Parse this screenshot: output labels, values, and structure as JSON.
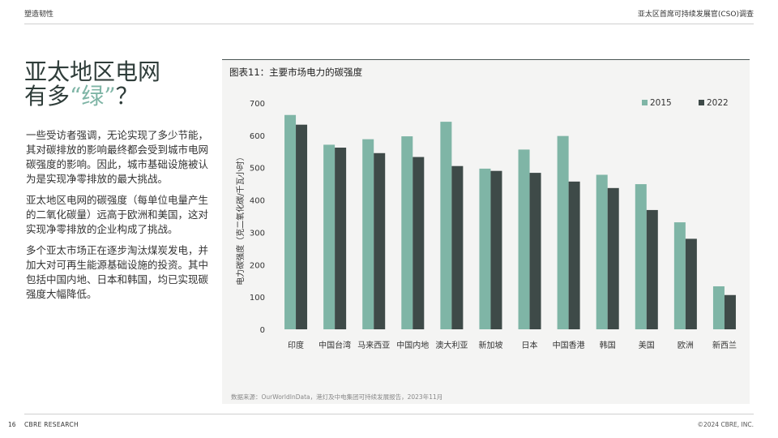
{
  "header": {
    "left": "塑造韧性",
    "right": "亚太区首席可持续发展官(CSO)调查"
  },
  "headline": {
    "line1": "亚太地区电网",
    "line2_prefix": "有多",
    "line2_accent": "“绿”",
    "line2_suffix": "？"
  },
  "body": {
    "p1": "一些受访者强调，无论实现了多少节能，其对碳排放的影响最终都会受到城市电网碳强度的影响。因此，城市基础设施被认为是实现净零排放的最大挑战。",
    "p2": "亚太地区电网的碳强度（每单位电量产生的二氧化碳量）远高于欧洲和美国，这对实现净零排放的企业构成了挑战。",
    "p3": "多个亚太市场正在逐步淘汰煤炭发电，并加大对可再生能源基础设施的投资。其中包括中国内地、日本和韩国，均已实现碳强度大幅降低。"
  },
  "chart_data": {
    "type": "bar",
    "title": "图表11：主要市场电力的碳强度",
    "ylabel": "电力碳强度（克二氧化碳/千瓦小时）",
    "xlabel": "",
    "ylim": [
      0,
      700
    ],
    "yticks": [
      0,
      100,
      200,
      300,
      400,
      500,
      600,
      700
    ],
    "grid": false,
    "legend_position": "top-right",
    "categories": [
      "印度",
      "中国台湾",
      "马来西亚",
      "中国内地",
      "澳大利亚",
      "新加坡",
      "日本",
      "中国香港",
      "韩国",
      "美国",
      "欧洲",
      "新西兰"
    ],
    "series": [
      {
        "name": "2015",
        "color": "#7fb5a6",
        "values": [
          663,
          571,
          588,
          597,
          642,
          497,
          556,
          598,
          478,
          449,
          331,
          133
        ]
      },
      {
        "name": "2022",
        "color": "#3e4a48",
        "values": [
          633,
          562,
          545,
          533,
          505,
          490,
          484,
          457,
          437,
          369,
          280,
          106
        ]
      }
    ],
    "source": "数据来源：OurWorldInData，港灯及中电集团可持续发展报告，2023年11月"
  },
  "footer": {
    "page": "16",
    "brand": "CBRE RESEARCH",
    "copyright": "©2024 CBRE, INC."
  }
}
